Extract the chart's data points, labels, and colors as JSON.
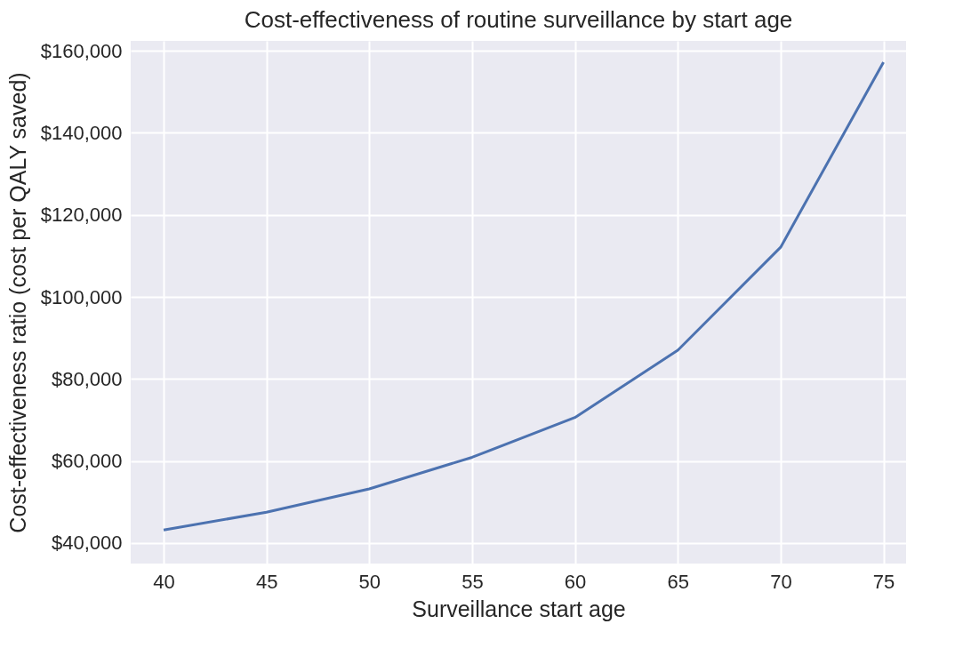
{
  "chart_data": {
    "type": "line",
    "title": "Cost-effectiveness of routine surveillance by start age",
    "xlabel": "Surveillance start age",
    "ylabel": "Cost-effectiveness ratio (cost per QALY saved)",
    "x": [
      40,
      45,
      50,
      55,
      60,
      65,
      70,
      75
    ],
    "series": [
      {
        "color": "#4c72b0",
        "values": [
          43200,
          47500,
          53200,
          60900,
          70600,
          87000,
          112100,
          157200
        ]
      }
    ],
    "xlim": [
      38.4,
      76.1
    ],
    "xticks": [
      40,
      45,
      50,
      55,
      60,
      65,
      70,
      75
    ],
    "ylim": [
      35000,
      162400
    ],
    "yticks": [
      {
        "value": 40000,
        "label": "$40,000"
      },
      {
        "value": 60000,
        "label": "$60,000"
      },
      {
        "value": 80000,
        "label": "$80,000"
      },
      {
        "value": 100000,
        "label": "$100,000"
      },
      {
        "value": 120000,
        "label": "$120,000"
      },
      {
        "value": 140000,
        "label": "$140,000"
      },
      {
        "value": 160000,
        "label": "$160,000"
      }
    ],
    "grid": true,
    "legend": false,
    "marker": "none",
    "line_style": "solid"
  }
}
